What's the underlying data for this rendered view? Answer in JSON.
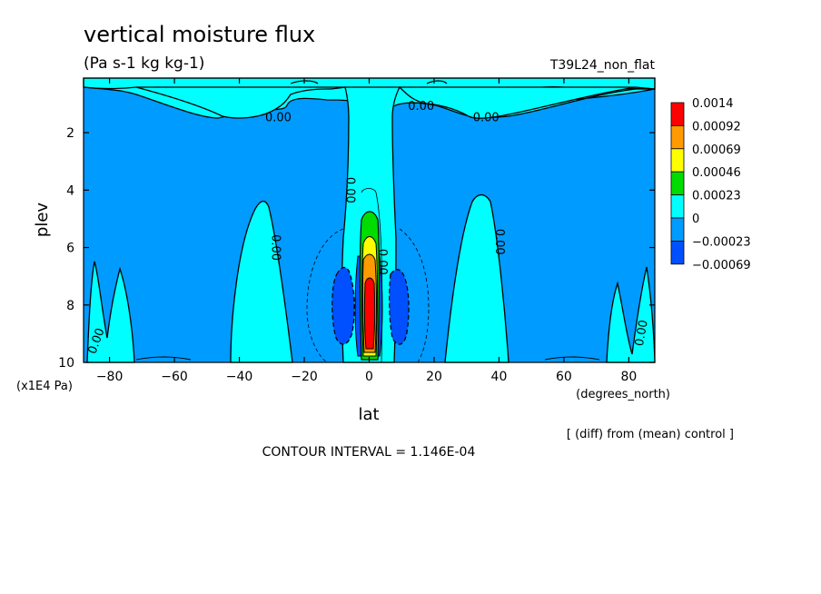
{
  "chart_data": {
    "type": "heatmap",
    "title": "vertical moisture flux",
    "units": "(Pa s-1 kg kg-1)",
    "run_label": "T39L24_non_flat",
    "xlabel": "lat",
    "xunits": "(degrees_north)",
    "ylabel": "plev",
    "yunits": "(x1E4 Pa)",
    "xlim": [
      -88,
      88
    ],
    "ylim": [
      10,
      0.1
    ],
    "x_ticks": [
      -80,
      -60,
      -40,
      -20,
      0,
      20,
      40,
      60,
      80
    ],
    "y_ticks": [
      2,
      4,
      6,
      8,
      10
    ],
    "contour_interval_text": "CONTOUR INTERVAL = 1.146E-04",
    "footnote": "[ (diff) from (mean) control ]",
    "colorbar": {
      "levels": [
        "0.0014",
        "0.00092",
        "0.00069",
        "0.00046",
        "0.00023",
        "0",
        "−0.00023",
        "−0.00069"
      ],
      "colors": [
        "#ff0000",
        "#ff9a00",
        "#ffff00",
        "#00dc00",
        "#00ffff",
        "#009bff",
        "#0050ff"
      ]
    },
    "contour_labels": [
      {
        "text": "0.00",
        "x": -28,
        "y": 1.6,
        "rotate": 0
      },
      {
        "text": "0.00",
        "x": 16,
        "y": 1.2,
        "rotate": 0
      },
      {
        "text": "0.00",
        "x": 36,
        "y": 1.6,
        "rotate": 0
      },
      {
        "text": "0.00",
        "x": -7,
        "y": 4.0,
        "rotate": 90
      },
      {
        "text": "0.00",
        "x": -30,
        "y": 6.0,
        "rotate": 90
      },
      {
        "text": "0.00",
        "x": 39,
        "y": 5.8,
        "rotate": 90
      },
      {
        "text": "0.00",
        "x": -83,
        "y": 9.3,
        "rotate": -70
      },
      {
        "text": "0.00",
        "x": 85,
        "y": 9.0,
        "rotate": -80
      },
      {
        "text": "0.00",
        "x": 3,
        "y": 6.5,
        "rotate": 90
      }
    ],
    "contour_colors": {
      "background": "#009bff",
      "zero_band": "#00ffff",
      "level1": "#00dc00",
      "level2": "#ffff00",
      "level3": "#ff9a00",
      "level4": "#ff0000",
      "negative": "#0050ff"
    }
  }
}
